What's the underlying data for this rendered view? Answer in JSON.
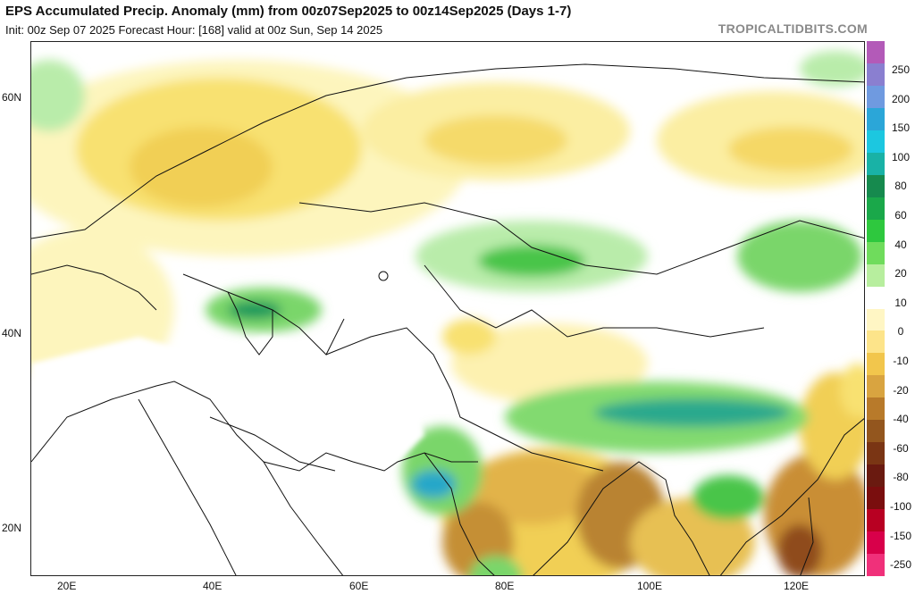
{
  "header": {
    "title": "EPS Accumulated Precip. Anomaly (mm) from 00z07Sep2025 to 00z14Sep2025 (Days 1-7)",
    "subtitle": "Init: 00z Sep 07 2025   Forecast Hour: [168]   valid at 00z Sun, Sep 14 2025",
    "brand": "TROPICALTIDBITS.COM"
  },
  "axes": {
    "lat_labels": [
      "60N",
      "40N",
      "20N"
    ],
    "lon_labels": [
      "20E",
      "40E",
      "60E",
      "80E",
      "100E",
      "120E"
    ]
  },
  "colorbar": {
    "labels": [
      "250",
      "200",
      "150",
      "100",
      "80",
      "60",
      "40",
      "20",
      "10",
      "0",
      "-10",
      "-20",
      "-40",
      "-60",
      "-80",
      "-100",
      "-150",
      "-250"
    ],
    "colors": [
      "#b35ab8",
      "#8a7fd0",
      "#6f9ae0",
      "#2ba6d8",
      "#1cc7e0",
      "#19b2a6",
      "#168a4e",
      "#1aa84a",
      "#2ec83e",
      "#6fdc5c",
      "#b7ee9e",
      "#ffffff",
      "#fff6c4",
      "#fde48a",
      "#f2c64c",
      "#d9a440",
      "#b87a2a",
      "#93561e",
      "#7a3514",
      "#6a1a10",
      "#7a0e0e",
      "#b80022",
      "#d8004a",
      "#f0307a"
    ]
  },
  "map": {
    "region": "Europe / Middle East / Asia",
    "colors": {
      "dry_light": "#fdf5bd",
      "dry": "#f8e171",
      "dry_strong": "#e9bf4a",
      "very_dry": "#b9852e",
      "wet_light": "#b9ecaa",
      "wet": "#49c54a",
      "wet_strong": "#18995c",
      "very_wet": "#28a7c9"
    }
  }
}
